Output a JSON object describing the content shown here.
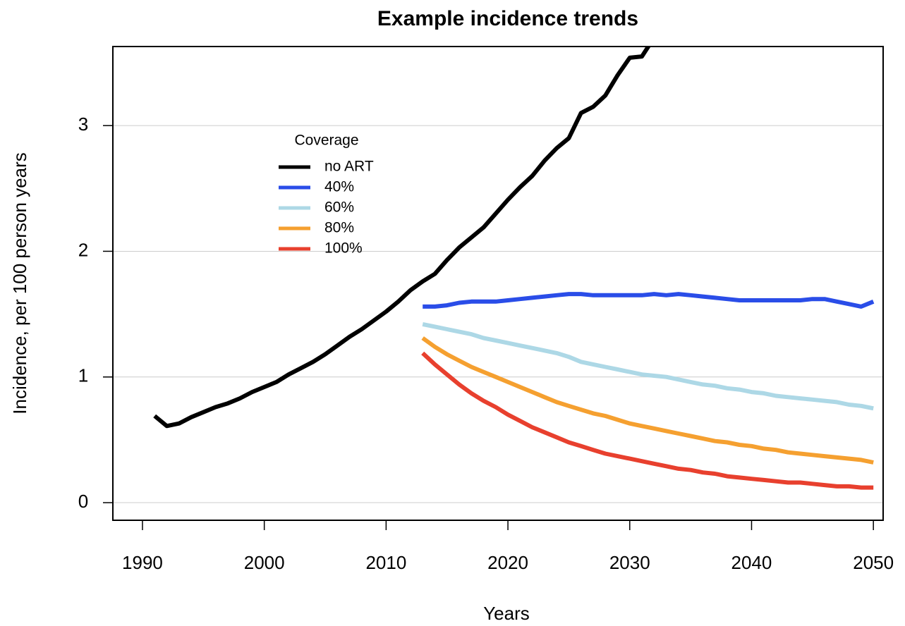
{
  "chart_data": {
    "type": "line",
    "title": "Example incidence trends",
    "x_label": "Years",
    "y_label": "Incidence, per 100 person years",
    "x": [
      1991,
      1992,
      1993,
      1994,
      1995,
      1996,
      1997,
      1998,
      1999,
      2000,
      2001,
      2002,
      2003,
      2004,
      2005,
      2006,
      2007,
      2008,
      2009,
      2010,
      2011,
      2012,
      2013,
      2014,
      2015,
      2016,
      2017,
      2018,
      2019,
      2020,
      2021,
      2022,
      2023,
      2024,
      2025,
      2026,
      2027,
      2028,
      2029,
      2030,
      2031,
      2032,
      2033,
      2034,
      2035,
      2036,
      2037,
      2038,
      2039,
      2040,
      2041,
      2042,
      2043,
      2044,
      2045,
      2046,
      2047,
      2048,
      2049,
      2050
    ],
    "xlim": [
      1987.57,
      2050.8
    ],
    "xticks": [
      1990,
      2000,
      2010,
      2020,
      2030,
      2040,
      2050
    ],
    "ylim": [
      -0.14,
      3.629
    ],
    "yticks": [
      0,
      1,
      2,
      3
    ],
    "grid": true,
    "legend_title": "Coverage",
    "series": [
      {
        "name": "no ART",
        "color": "#000000",
        "values": [
          0.69,
          0.61,
          0.63,
          0.68,
          0.72,
          0.76,
          0.79,
          0.83,
          0.88,
          0.92,
          0.96,
          1.02,
          1.07,
          1.12,
          1.18,
          1.25,
          1.32,
          1.38,
          1.45,
          1.52,
          1.6,
          1.69,
          1.76,
          1.82,
          1.93,
          2.03,
          2.11,
          2.19,
          2.3,
          2.41,
          2.51,
          2.6,
          2.72,
          2.82,
          2.9,
          3.1,
          3.15,
          3.24,
          3.4,
          3.54,
          3.55,
          3.7,
          null,
          null,
          null,
          null,
          null,
          null,
          null,
          null,
          null,
          null,
          null,
          null,
          null,
          null,
          null,
          null,
          null,
          null
        ]
      },
      {
        "name": "40%",
        "color": "#2a4de8",
        "values": [
          null,
          null,
          null,
          null,
          null,
          null,
          null,
          null,
          null,
          null,
          null,
          null,
          null,
          null,
          null,
          null,
          null,
          null,
          null,
          null,
          null,
          null,
          1.56,
          1.56,
          1.57,
          1.59,
          1.6,
          1.6,
          1.6,
          1.61,
          1.62,
          1.63,
          1.64,
          1.65,
          1.66,
          1.66,
          1.65,
          1.65,
          1.65,
          1.65,
          1.65,
          1.66,
          1.65,
          1.66,
          1.65,
          1.64,
          1.63,
          1.62,
          1.61,
          1.61,
          1.61,
          1.61,
          1.61,
          1.61,
          1.62,
          1.62,
          1.6,
          1.58,
          1.56,
          1.6
        ]
      },
      {
        "name": "60%",
        "color": "#add8e6",
        "values": [
          null,
          null,
          null,
          null,
          null,
          null,
          null,
          null,
          null,
          null,
          null,
          null,
          null,
          null,
          null,
          null,
          null,
          null,
          null,
          null,
          null,
          null,
          1.42,
          1.4,
          1.38,
          1.36,
          1.34,
          1.31,
          1.29,
          1.27,
          1.25,
          1.23,
          1.21,
          1.19,
          1.16,
          1.12,
          1.1,
          1.08,
          1.06,
          1.04,
          1.02,
          1.01,
          1.0,
          0.98,
          0.96,
          0.94,
          0.93,
          0.91,
          0.9,
          0.88,
          0.87,
          0.85,
          0.84,
          0.83,
          0.82,
          0.81,
          0.8,
          0.78,
          0.77,
          0.75
        ]
      },
      {
        "name": "80%",
        "color": "#f5a030",
        "values": [
          null,
          null,
          null,
          null,
          null,
          null,
          null,
          null,
          null,
          null,
          null,
          null,
          null,
          null,
          null,
          null,
          null,
          null,
          null,
          null,
          null,
          null,
          1.31,
          1.24,
          1.18,
          1.13,
          1.08,
          1.04,
          1.0,
          0.96,
          0.92,
          0.88,
          0.84,
          0.8,
          0.77,
          0.74,
          0.71,
          0.69,
          0.66,
          0.63,
          0.61,
          0.59,
          0.57,
          0.55,
          0.53,
          0.51,
          0.49,
          0.48,
          0.46,
          0.45,
          0.43,
          0.42,
          0.4,
          0.39,
          0.38,
          0.37,
          0.36,
          0.35,
          0.34,
          0.32
        ]
      },
      {
        "name": "100%",
        "color": "#e8402e",
        "values": [
          null,
          null,
          null,
          null,
          null,
          null,
          null,
          null,
          null,
          null,
          null,
          null,
          null,
          null,
          null,
          null,
          null,
          null,
          null,
          null,
          null,
          null,
          1.19,
          1.1,
          1.02,
          0.94,
          0.87,
          0.81,
          0.76,
          0.7,
          0.65,
          0.6,
          0.56,
          0.52,
          0.48,
          0.45,
          0.42,
          0.39,
          0.37,
          0.35,
          0.33,
          0.31,
          0.29,
          0.27,
          0.26,
          0.24,
          0.23,
          0.21,
          0.2,
          0.19,
          0.18,
          0.17,
          0.16,
          0.16,
          0.15,
          0.14,
          0.13,
          0.13,
          0.12,
          0.12
        ]
      }
    ]
  }
}
